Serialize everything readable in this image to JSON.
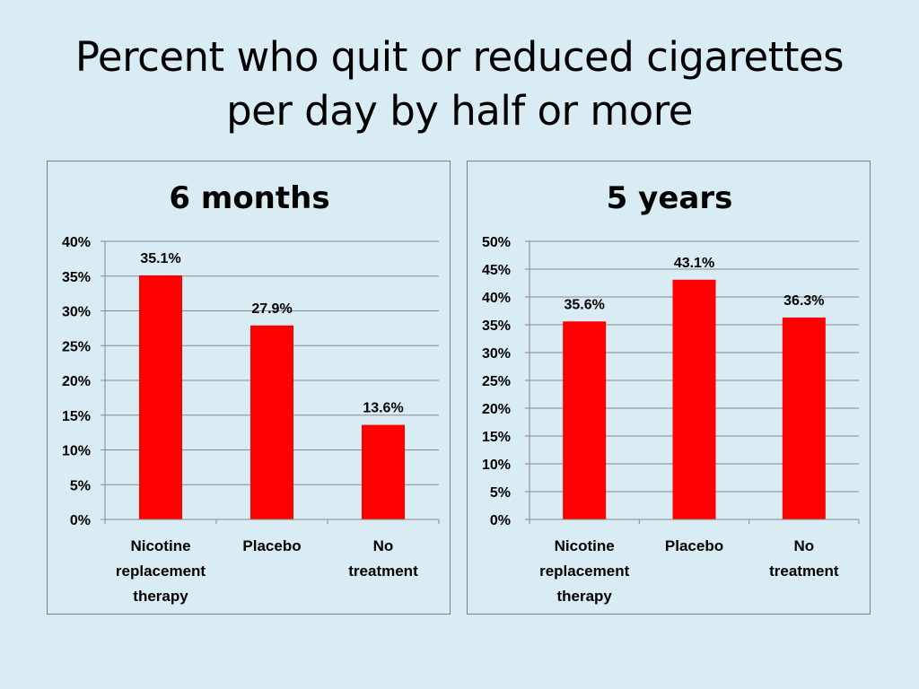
{
  "slide": {
    "title_line1": "Percent who quit or reduced cigarettes",
    "title_line2": "per day by half or more"
  },
  "colors": {
    "background": "#d9ecf4",
    "bar": "#ff0000",
    "grid": "#888888"
  },
  "chart_data": [
    {
      "type": "bar",
      "title": "6 months",
      "categories": [
        [
          "Nicotine",
          "replacement",
          "therapy"
        ],
        [
          "Placebo"
        ],
        [
          "No",
          "treatment"
        ]
      ],
      "values": [
        35.1,
        27.9,
        13.6
      ],
      "data_labels": [
        "35.1%",
        "27.9%",
        "13.6%"
      ],
      "ylim": [
        0,
        40
      ],
      "yticks": [
        0,
        5,
        10,
        15,
        20,
        25,
        30,
        35,
        40
      ],
      "ytick_labels": [
        "0%",
        "5%",
        "10%",
        "15%",
        "20%",
        "25%",
        "30%",
        "35%",
        "40%"
      ],
      "grid": true,
      "legend": "none"
    },
    {
      "type": "bar",
      "title": "5 years",
      "categories": [
        [
          "Nicotine",
          "replacement",
          "therapy"
        ],
        [
          "Placebo"
        ],
        [
          "No",
          "treatment"
        ]
      ],
      "values": [
        35.6,
        43.1,
        36.3
      ],
      "data_labels": [
        "35.6%",
        "43.1%",
        "36.3%"
      ],
      "ylim": [
        0,
        50
      ],
      "yticks": [
        0,
        5,
        10,
        15,
        20,
        25,
        30,
        35,
        40,
        45,
        50
      ],
      "ytick_labels": [
        "0%",
        "5%",
        "10%",
        "15%",
        "20%",
        "25%",
        "30%",
        "35%",
        "40%",
        "45%",
        "50%"
      ],
      "grid": true,
      "legend": "none"
    }
  ]
}
